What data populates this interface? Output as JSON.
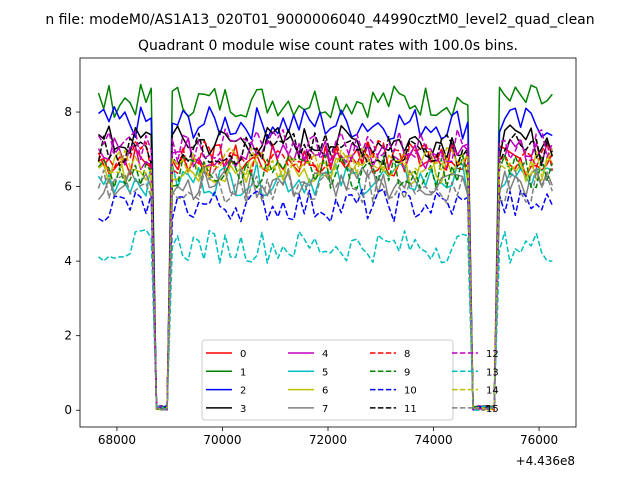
{
  "figure": {
    "suptitle": "n file: modeM0/AS1A13_020T01_9000006040_44990cztM0_level2_quad_clean",
    "title": "Quadrant 0 module wise count rates with 100.0s bins."
  },
  "chart_data": {
    "type": "line",
    "title": "Quadrant 0 module wise count rates with 100.0s bins.",
    "xlabel": "",
    "ylabel": "",
    "x_offset_label": "+4.436e8",
    "xlim": [
      67300,
      76700
    ],
    "ylim": [
      -0.45,
      9.45
    ],
    "xticks": [
      68000,
      70000,
      72000,
      74000,
      76000
    ],
    "yticks": [
      0,
      2,
      4,
      6,
      8
    ],
    "x_start": 67650,
    "x_step": 100,
    "legend": {
      "placement": "lower-center",
      "columns": 4
    },
    "series": [
      {
        "name": "0",
        "color": "#ff0000",
        "dash": "solid",
        "base": 6.7
      },
      {
        "name": "1",
        "color": "#008000",
        "dash": "solid",
        "base": 8.3
      },
      {
        "name": "2",
        "color": "#0000ff",
        "dash": "solid",
        "base": 7.7
      },
      {
        "name": "3",
        "color": "#000000",
        "dash": "solid",
        "base": 7.2
      },
      {
        "name": "4",
        "color": "#bf00bf",
        "dash": "solid",
        "base": 6.9
      },
      {
        "name": "5",
        "color": "#00bfbf",
        "dash": "solid",
        "base": 6.2
      },
      {
        "name": "6",
        "color": "#bfbf00",
        "dash": "solid",
        "base": 6.5
      },
      {
        "name": "7",
        "color": "#808080",
        "dash": "solid",
        "base": 6.1
      },
      {
        "name": "8",
        "color": "#ff0000",
        "dash": "dashed",
        "base": 6.8
      },
      {
        "name": "9",
        "color": "#008000",
        "dash": "dashed",
        "base": 6.4
      },
      {
        "name": "10",
        "color": "#0000ff",
        "dash": "dashed",
        "base": 5.5
      },
      {
        "name": "11",
        "color": "#000000",
        "dash": "dashed",
        "base": 7.0
      },
      {
        "name": "12",
        "color": "#bf00bf",
        "dash": "dashed",
        "base": 7.1
      },
      {
        "name": "13",
        "color": "#00bfbf",
        "dash": "dashed",
        "base": 4.4
      },
      {
        "name": "14",
        "color": "#bfbf00",
        "dash": "dashed",
        "base": 6.6
      },
      {
        "name": "15",
        "color": "#808080",
        "dash": "dashed",
        "base": 6.0
      }
    ],
    "gaps": [
      [
        68650,
        69050
      ],
      [
        74650,
        75250
      ]
    ],
    "x_end": 76250
  }
}
